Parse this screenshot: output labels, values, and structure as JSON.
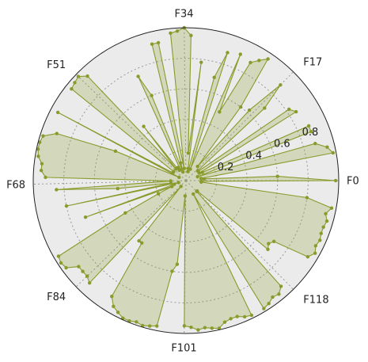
{
  "chart_data": {
    "type": "radar",
    "theta_tick_labels": [
      "F0",
      "F17",
      "F34",
      "F51",
      "F68",
      "F84",
      "F101",
      "F118"
    ],
    "theta_tick_indices": [
      0,
      17,
      34,
      51,
      68,
      84,
      101,
      118
    ],
    "n_categories": 135,
    "r_ticks": [
      0.2,
      0.4,
      0.6,
      0.8
    ],
    "r_tick_labels": [
      "0.2",
      "0.4",
      "0.6",
      "0.8"
    ],
    "rlim": [
      0,
      1.0
    ],
    "grid": true,
    "legend": "none",
    "colors": {
      "line": "#8a9a2b",
      "fill": "#8a9a2b",
      "background": "#ebebeb",
      "grid": "#999999",
      "frame": "#222222"
    },
    "values": [
      0.98,
      0.6,
      0.12,
      0.1,
      0.98,
      0.95,
      0.88,
      0.08,
      0.88,
      0.88,
      0.12,
      0.1,
      0.85,
      0.82,
      0.1,
      0.1,
      0.7,
      0.88,
      0.62,
      0.12,
      0.6,
      0.96,
      0.92,
      0.88,
      0.5,
      0.9,
      0.08,
      0.88,
      0.7,
      0.06,
      0.08,
      0.78,
      0.18,
      0.95,
      1.0,
      0.98,
      0.97,
      0.08,
      0.92,
      0.92,
      0.12,
      0.06,
      0.6,
      0.75,
      0.08,
      0.1,
      0.08,
      0.1,
      0.45,
      0.1,
      0.94,
      0.98,
      0.97,
      0.96,
      0.1,
      0.1,
      0.1,
      0.95,
      0.05,
      0.5,
      0.9,
      0.98,
      0.99,
      0.99,
      0.98,
      0.95,
      0.95,
      0.92,
      0.1,
      0.85,
      0.45,
      0.1,
      0.8,
      0.05,
      0.08,
      0.7,
      0.1,
      0.2,
      0.45,
      0.97,
      0.98,
      0.97,
      0.9,
      0.9,
      0.9,
      0.92,
      0.05,
      0.5,
      0.5,
      0.9,
      0.95,
      0.97,
      0.99,
      0.99,
      0.98,
      0.99,
      0.98,
      0.97,
      0.6,
      0.55,
      0.1,
      0.95,
      0.96,
      0.98,
      0.97,
      0.98,
      0.99,
      0.96,
      0.95,
      0.95,
      0.97,
      0.98,
      0.1,
      0.98,
      0.97,
      0.95,
      0.96,
      0.93,
      0.1,
      0.1,
      0.7,
      0.68,
      0.7,
      0.94,
      0.97,
      0.95,
      0.96,
      0.95,
      0.95,
      0.96,
      0.94,
      0.97,
      0.8,
      0.1,
      0.1
    ]
  }
}
